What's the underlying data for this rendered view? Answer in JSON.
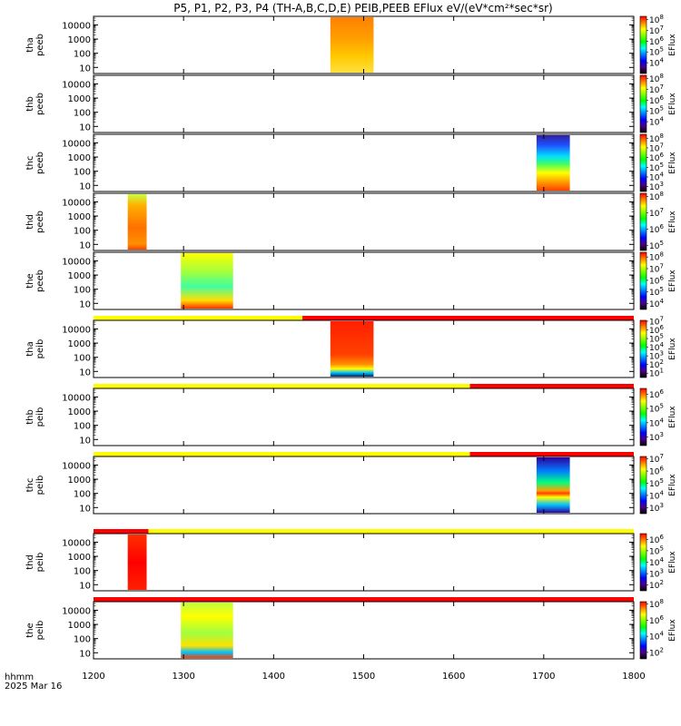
{
  "title": "P5, P1, P2, P3, P4 (TH-A,B,C,D,E) PEIB,PEEB EFlux eV/(eV*cm²*sec*sr)",
  "x_label_line1": "hhmm",
  "x_label_line2": "2025 Mar 16",
  "colorbar_label": "EFlux",
  "chart_data": {
    "type": "heatmap",
    "x_range": [
      1200,
      1800
    ],
    "x_ticks": [
      "1200",
      "1300",
      "1400",
      "1500",
      "1600",
      "1700",
      "1800"
    ],
    "x_tick_values": [
      1200,
      1300,
      1400,
      1500,
      1600,
      1700,
      1800
    ],
    "y_scale": "log",
    "y_range_eV": [
      5,
      30000
    ],
    "y_ticks": [
      "10000",
      "1000",
      "100",
      "10"
    ],
    "y_tick_values": [
      10000,
      1000,
      100,
      10
    ],
    "panels": [
      {
        "probe": "tha",
        "product": "peeb",
        "segments": [
          {
            "start": 1463,
            "end": 1511,
            "scheme": "warm"
          }
        ],
        "cbar_ticks": [
          {
            "mant": "10",
            "exp": "8"
          },
          {
            "mant": "10",
            "exp": "7"
          },
          {
            "mant": "10",
            "exp": "6"
          },
          {
            "mant": "10",
            "exp": "5"
          },
          {
            "mant": "10",
            "exp": "4"
          }
        ],
        "cbar_range": [
          3,
          8.3
        ],
        "bar_above": null
      },
      {
        "probe": "thb",
        "product": "peeb",
        "segments": [],
        "cbar_ticks": [
          {
            "mant": "10",
            "exp": "8"
          },
          {
            "mant": "10",
            "exp": "7"
          },
          {
            "mant": "10",
            "exp": "6"
          },
          {
            "mant": "10",
            "exp": "5"
          },
          {
            "mant": "10",
            "exp": "4"
          }
        ],
        "cbar_range": [
          3,
          8.3
        ],
        "bar_above": null
      },
      {
        "probe": "thc",
        "product": "peeb",
        "segments": [
          {
            "start": 1692,
            "end": 1729,
            "scheme": "rainbow"
          }
        ],
        "cbar_ticks": [
          {
            "mant": "10",
            "exp": "8"
          },
          {
            "mant": "10",
            "exp": "7"
          },
          {
            "mant": "10",
            "exp": "6"
          },
          {
            "mant": "10",
            "exp": "5"
          },
          {
            "mant": "10",
            "exp": "4"
          },
          {
            "mant": "10",
            "exp": "3"
          }
        ],
        "cbar_range": [
          2.5,
          8.4
        ],
        "bar_above": null
      },
      {
        "probe": "thd",
        "product": "peeb",
        "segments": [
          {
            "start": 1238,
            "end": 1259,
            "scheme": "hot"
          }
        ],
        "cbar_ticks": [
          {
            "mant": "10",
            "exp": "8"
          },
          {
            "mant": "10",
            "exp": "7"
          },
          {
            "mant": "10",
            "exp": "6"
          },
          {
            "mant": "10",
            "exp": "5"
          }
        ],
        "cbar_range": [
          4.7,
          8.2
        ],
        "bar_above": null
      },
      {
        "probe": "the",
        "product": "peeb",
        "segments": [
          {
            "start": 1297,
            "end": 1355,
            "scheme": "mixed"
          }
        ],
        "cbar_ticks": [
          {
            "mant": "10",
            "exp": "8"
          },
          {
            "mant": "10",
            "exp": "7"
          },
          {
            "mant": "10",
            "exp": "6"
          },
          {
            "mant": "10",
            "exp": "5"
          },
          {
            "mant": "10",
            "exp": "4"
          }
        ],
        "cbar_range": [
          3.5,
          8.4
        ],
        "bar_above": null
      },
      {
        "probe": "tha",
        "product": "peib",
        "segments": [
          {
            "start": 1463,
            "end": 1511,
            "scheme": "ion"
          }
        ],
        "cbar_ticks": [
          {
            "mant": "10",
            "exp": "7"
          },
          {
            "mant": "10",
            "exp": "6"
          },
          {
            "mant": "10",
            "exp": "5"
          },
          {
            "mant": "10",
            "exp": "4"
          },
          {
            "mant": "10",
            "exp": "3"
          },
          {
            "mant": "10",
            "exp": "2"
          },
          {
            "mant": "10",
            "exp": "1"
          }
        ],
        "cbar_range": [
          0.5,
          7.1
        ],
        "bar_above": {
          "split": 1432,
          "left": "#ffff00",
          "right": "#ff0000"
        }
      },
      {
        "probe": "thb",
        "product": "peib",
        "segments": [],
        "cbar_ticks": [
          {
            "mant": "10",
            "exp": "6"
          },
          {
            "mant": "10",
            "exp": "5"
          },
          {
            "mant": "10",
            "exp": "4"
          },
          {
            "mant": "10",
            "exp": "3"
          }
        ],
        "cbar_range": [
          2.4,
          6.4
        ],
        "bar_above": {
          "split": 1618,
          "left": "#ffff00",
          "right": "#ff0000"
        }
      },
      {
        "probe": "thc",
        "product": "peib",
        "segments": [
          {
            "start": 1692,
            "end": 1729,
            "scheme": "ion2"
          }
        ],
        "cbar_ticks": [
          {
            "mant": "10",
            "exp": "7"
          },
          {
            "mant": "10",
            "exp": "6"
          },
          {
            "mant": "10",
            "exp": "5"
          },
          {
            "mant": "10",
            "exp": "4"
          },
          {
            "mant": "10",
            "exp": "3"
          }
        ],
        "cbar_range": [
          2.5,
          7.2
        ],
        "bar_above": {
          "split": 1618,
          "left": "#ffff00",
          "right": "#ff0000"
        }
      },
      {
        "probe": "thd",
        "product": "peib",
        "segments": [
          {
            "start": 1238,
            "end": 1259,
            "scheme": "hotred"
          }
        ],
        "cbar_ticks": [
          {
            "mant": "10",
            "exp": "6"
          },
          {
            "mant": "10",
            "exp": "5"
          },
          {
            "mant": "10",
            "exp": "4"
          },
          {
            "mant": "10",
            "exp": "3"
          },
          {
            "mant": "10",
            "exp": "2"
          }
        ],
        "cbar_range": [
          1.5,
          6.5
        ],
        "bar_above": {
          "split": 1261,
          "left": "#ff0000",
          "right": "#ffff00"
        }
      },
      {
        "probe": "the",
        "product": "peib",
        "segments": [
          {
            "start": 1297,
            "end": 1355,
            "scheme": "ion3"
          }
        ],
        "cbar_ticks": [
          {
            "mant": "10",
            "exp": "8"
          },
          {
            "mant": "10",
            "exp": "6"
          },
          {
            "mant": "10",
            "exp": "4"
          },
          {
            "mant": "10",
            "exp": "2"
          }
        ],
        "cbar_range": [
          1.2,
          8.3
        ],
        "bar_above": {
          "split": 1800,
          "left": "#ff0000",
          "right": "#ff0000"
        }
      }
    ]
  }
}
